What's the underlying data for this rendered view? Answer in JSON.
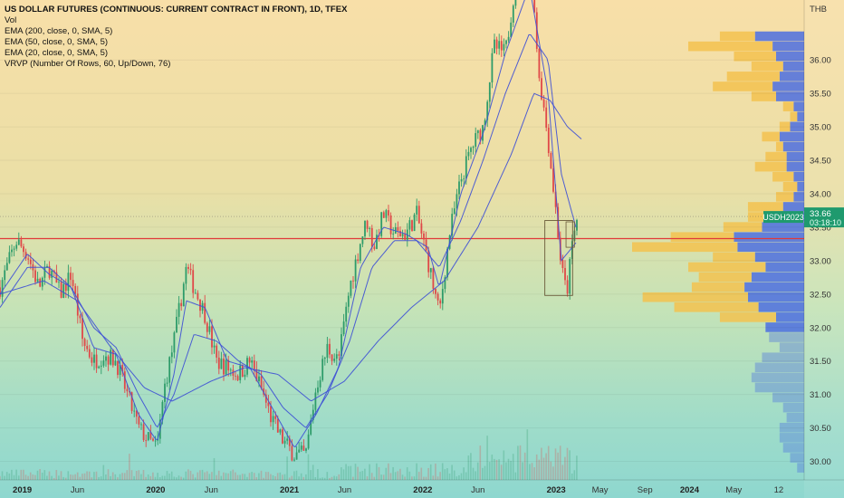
{
  "header": {
    "title": "US DOLLAR FUTURES (CONTINUOUS: CURRENT CONTRACT IN FRONT), 1D, TFEX",
    "indicators": [
      "Vol",
      "EMA (200, close, 0, SMA, 5)",
      "EMA (50, close, 0, SMA, 5)",
      "EMA (20, close, 0, SMA, 5)",
      "VRVP (Number Of Rows, 60, Up/Down, 76)"
    ]
  },
  "currency": "THB",
  "price_tag": {
    "symbol": "USDH2023",
    "price": "33.66",
    "countdown": "03:18:10"
  },
  "colors": {
    "up": "#2e9c6a",
    "down": "#e04848",
    "ema_line": "#3d4fd6",
    "vrvp_up": "#4c6fe0",
    "vrvp_down": "#f3c24f",
    "hline": "#e03a3a",
    "box": "#6a5a3a"
  },
  "chart_data": {
    "type": "line",
    "title": "US DOLLAR FUTURES (CONTINUOUS: CURRENT CONTRACT IN FRONT), 1D, TFEX",
    "x_ticks": [
      "2019",
      "Jun",
      "2020",
      "Jun",
      "2021",
      "Jun",
      "2022",
      "Jun",
      "2023",
      "May",
      "Sep",
      "2024",
      "May",
      "12"
    ],
    "x_ticks_bold": [
      "2019",
      "2020",
      "2021",
      "2022",
      "2023",
      "2024"
    ],
    "y_ticks": [
      "36.00",
      "35.50",
      "35.00",
      "34.50",
      "34.00",
      "33.50",
      "33.00",
      "32.50",
      "32.00",
      "31.50",
      "31.00",
      "30.50",
      "30.00"
    ],
    "ylim": [
      29.75,
      36.5
    ],
    "horizontal_line": 33.33,
    "last_price": 33.66,
    "series": [
      {
        "kind": "price",
        "x": [
          "2018-11-01",
          "2018-12-15",
          "2019-01-15",
          "2019-02-15",
          "2019-03-15",
          "2019-04-15",
          "2019-05-15",
          "2019-06-15",
          "2019-07-15",
          "2019-08-15",
          "2019-09-15",
          "2019-10-15",
          "2019-11-15",
          "2019-12-15",
          "2020-01-05",
          "2020-01-25",
          "2020-02-20",
          "2020-03-25",
          "2020-04-15",
          "2020-05-15",
          "2020-06-15",
          "2020-07-15",
          "2020-08-15",
          "2020-09-15",
          "2020-10-15",
          "2020-11-15",
          "2020-12-15",
          "2021-01-15",
          "2021-02-15",
          "2021-03-15",
          "2021-04-15",
          "2021-05-15",
          "2021-06-15",
          "2021-07-15",
          "2021-08-01",
          "2021-08-20",
          "2021-09-15",
          "2021-10-15",
          "2021-11-15",
          "2021-12-15",
          "2022-01-15",
          "2022-02-15",
          "2022-03-15",
          "2022-04-15",
          "2022-05-15",
          "2022-06-15",
          "2022-07-15",
          "2022-08-15",
          "2022-09-15",
          "2022-10-20",
          "2022-11-15",
          "2022-12-10",
          "2023-01-01",
          "2023-01-15",
          "2023-01-30",
          "2023-02-15",
          "2023-03-01"
        ],
        "y": [
          32.6,
          33.3,
          33.1,
          32.6,
          32.9,
          32.5,
          32.8,
          31.8,
          31.5,
          31.6,
          31.5,
          31.0,
          30.5,
          30.3,
          30.2,
          31.1,
          31.8,
          32.9,
          32.6,
          32.2,
          31.5,
          31.4,
          31.3,
          31.5,
          31.1,
          30.6,
          30.3,
          30.1,
          30.1,
          31.1,
          31.7,
          31.5,
          32.6,
          33.3,
          33.6,
          33.2,
          33.7,
          33.4,
          33.4,
          33.7,
          33.0,
          32.2,
          33.4,
          34.2,
          34.7,
          35.0,
          36.2,
          36.1,
          37.3,
          37.7,
          35.8,
          34.8,
          33.7,
          32.9,
          32.5,
          33.3,
          33.66
        ]
      },
      {
        "name": "EMA 20",
        "x": [
          "2018-11-01",
          "2019-01-15",
          "2019-03-15",
          "2019-05-15",
          "2019-07-15",
          "2019-09-15",
          "2019-11-15",
          "2020-01-05",
          "2020-02-20",
          "2020-03-25",
          "2020-05-15",
          "2020-07-15",
          "2020-09-15",
          "2020-11-15",
          "2021-01-15",
          "2021-03-15",
          "2021-05-15",
          "2021-07-15",
          "2021-09-15",
          "2021-11-15",
          "2022-01-15",
          "2022-02-15",
          "2022-04-15",
          "2022-06-15",
          "2022-08-15",
          "2022-10-20",
          "2022-12-10",
          "2023-01-15",
          "2023-03-01"
        ],
        "y": [
          32.5,
          33.1,
          32.8,
          32.6,
          31.7,
          31.6,
          30.7,
          30.3,
          31.3,
          32.4,
          32.3,
          31.5,
          31.4,
          30.8,
          30.2,
          30.7,
          31.4,
          32.9,
          33.5,
          33.4,
          33.2,
          32.6,
          34.0,
          34.9,
          36.1,
          37.1,
          35.5,
          33.0,
          33.3
        ]
      },
      {
        "name": "EMA 50",
        "x": [
          "2018-11-01",
          "2019-01-15",
          "2019-03-15",
          "2019-05-15",
          "2019-07-15",
          "2019-09-15",
          "2019-11-15",
          "2020-01-05",
          "2020-02-20",
          "2020-04-15",
          "2020-06-15",
          "2020-08-15",
          "2020-10-15",
          "2020-12-15",
          "2021-02-15",
          "2021-04-15",
          "2021-06-15",
          "2021-08-15",
          "2021-10-15",
          "2021-12-15",
          "2022-02-15",
          "2022-04-15",
          "2022-06-15",
          "2022-08-15",
          "2022-10-20",
          "2022-12-10",
          "2023-01-15",
          "2023-03-01"
        ],
        "y": [
          32.3,
          32.9,
          32.9,
          32.6,
          32.0,
          31.7,
          31.0,
          30.5,
          31.0,
          31.9,
          31.8,
          31.5,
          31.3,
          30.8,
          30.5,
          31.0,
          31.8,
          32.9,
          33.3,
          33.3,
          32.9,
          33.6,
          34.5,
          35.5,
          36.4,
          36.0,
          34.3,
          33.4
        ]
      },
      {
        "name": "EMA 200",
        "x": [
          "2018-11-01",
          "2019-03-01",
          "2019-06-01",
          "2019-09-01",
          "2019-12-01",
          "2020-02-15",
          "2020-06-01",
          "2020-09-01",
          "2020-12-01",
          "2021-03-01",
          "2021-06-01",
          "2021-09-01",
          "2021-12-01",
          "2022-03-01",
          "2022-06-01",
          "2022-09-01",
          "2022-11-01",
          "2022-12-15",
          "2023-02-01",
          "2023-03-15"
        ],
        "y": [
          32.5,
          32.7,
          32.4,
          31.7,
          31.1,
          30.9,
          31.2,
          31.4,
          31.3,
          30.9,
          31.2,
          31.8,
          32.3,
          32.7,
          33.5,
          34.6,
          35.5,
          35.4,
          35.0,
          34.8
        ]
      }
    ],
    "vrvp": {
      "prices": [
        36.35,
        36.2,
        36.05,
        35.9,
        35.75,
        35.6,
        35.45,
        35.3,
        35.15,
        35.0,
        34.85,
        34.7,
        34.55,
        34.4,
        34.25,
        34.1,
        33.95,
        33.8,
        33.65,
        33.5,
        33.35,
        33.2,
        33.05,
        32.9,
        32.75,
        32.6,
        32.45,
        32.3,
        32.15,
        32.0,
        31.85,
        31.7,
        31.55,
        31.4,
        31.25,
        31.1,
        30.95,
        30.8,
        30.65,
        30.5,
        30.35,
        30.2,
        30.05,
        29.9
      ],
      "up": [
        70,
        45,
        40,
        30,
        35,
        45,
        40,
        15,
        10,
        20,
        35,
        30,
        25,
        25,
        15,
        10,
        15,
        30,
        50,
        60,
        100,
        95,
        70,
        55,
        75,
        85,
        80,
        65,
        40,
        55,
        50,
        35,
        60,
        70,
        75,
        70,
        45,
        30,
        25,
        35,
        35,
        30,
        20,
        10
      ],
      "down": [
        50,
        120,
        60,
        45,
        75,
        85,
        35,
        15,
        10,
        15,
        25,
        10,
        30,
        45,
        30,
        20,
        25,
        50,
        30,
        55,
        90,
        150,
        60,
        110,
        75,
        75,
        150,
        120,
        80,
        0,
        0,
        0,
        0,
        0,
        0,
        0,
        0,
        0,
        0,
        0,
        0,
        0,
        0,
        0
      ]
    },
    "annotation_box": {
      "x": [
        "2022-12-01",
        "2023-02-15"
      ],
      "y": [
        33.6,
        32.48
      ]
    },
    "annotation_box_small": {
      "x": [
        "2023-01-28",
        "2023-02-20"
      ],
      "y": [
        33.58,
        33.2
      ]
    }
  }
}
